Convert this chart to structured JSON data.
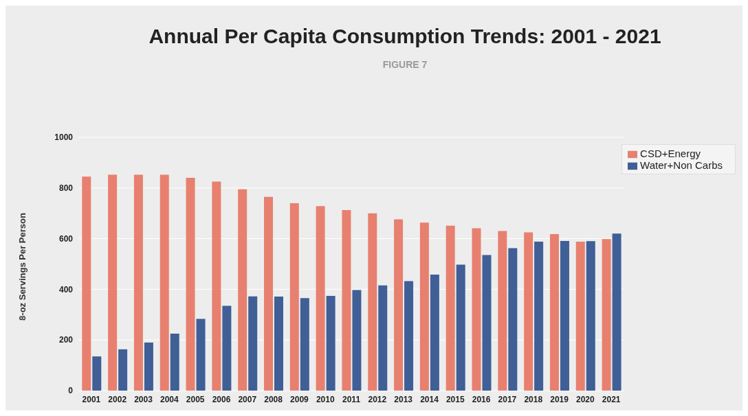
{
  "chart_data": {
    "type": "bar",
    "title": "Annual Per Capita Consumption Trends: 2001 - 2021",
    "subtitle": "FIGURE 7",
    "ylabel": "8-oz Servings Per Person",
    "categories": [
      "2001",
      "2002",
      "2003",
      "2004",
      "2005",
      "2006",
      "2007",
      "2008",
      "2009",
      "2010",
      "2011",
      "2012",
      "2013",
      "2014",
      "2015",
      "2016",
      "2017",
      "2018",
      "2019",
      "2020",
      "2021"
    ],
    "series": [
      {
        "name": "CSD+Energy",
        "color": "#e8806f",
        "values": [
          845,
          852,
          852,
          852,
          840,
          825,
          795,
          765,
          740,
          728,
          713,
          700,
          676,
          663,
          651,
          641,
          630,
          625,
          618,
          588,
          598
        ]
      },
      {
        "name": "Water+Non Carbs",
        "color": "#3f5f96",
        "values": [
          135,
          163,
          190,
          225,
          283,
          335,
          372,
          371,
          365,
          374,
          397,
          415,
          432,
          458,
          497,
          535,
          562,
          588,
          591,
          590,
          620
        ]
      }
    ],
    "ylim": [
      0,
      1000
    ],
    "yticks": [
      0,
      200,
      400,
      600,
      800,
      1000
    ],
    "grid": "y",
    "legend": "top right"
  }
}
